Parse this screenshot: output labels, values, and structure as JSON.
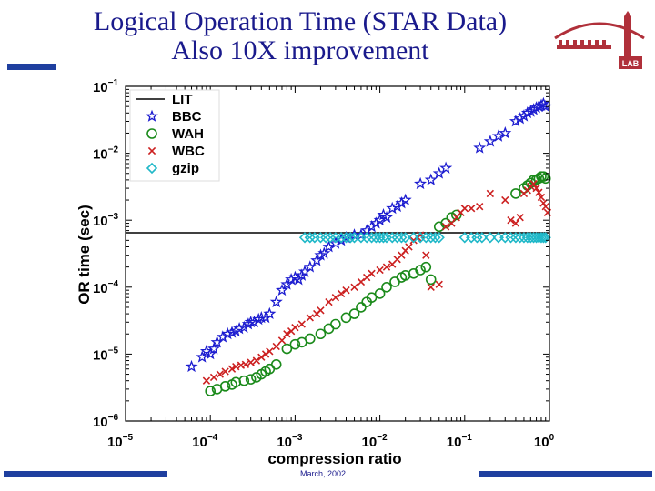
{
  "slide": {
    "title_line1": "Logical Operation Time (STAR Data)",
    "title_line2": "Also 10X improvement",
    "footer_date": "March, 2002",
    "logo_text": "LAB",
    "colors": {
      "title": "#1a1a8c",
      "bars": "#1f3f9f",
      "logo": "#b0303a"
    }
  },
  "chart_data": {
    "type": "scatter",
    "title": "",
    "xlabel": "compression ratio",
    "ylabel": "OR time (sec)",
    "xscale": "log",
    "yscale": "log",
    "xlim": [
      1e-05,
      1
    ],
    "ylim": [
      1e-06,
      0.1
    ],
    "xticks": [
      {
        "base": "10",
        "exp": "−5"
      },
      {
        "base": "10",
        "exp": "−4"
      },
      {
        "base": "10",
        "exp": "−3"
      },
      {
        "base": "10",
        "exp": "−2"
      },
      {
        "base": "10",
        "exp": "−1"
      },
      {
        "base": "10",
        "exp": "0"
      }
    ],
    "yticks": [
      {
        "base": "10",
        "exp": "−6"
      },
      {
        "base": "10",
        "exp": "−5"
      },
      {
        "base": "10",
        "exp": "−4"
      },
      {
        "base": "10",
        "exp": "−3"
      },
      {
        "base": "10",
        "exp": "−2"
      },
      {
        "base": "10",
        "exp": "−1"
      }
    ],
    "grid": false,
    "legend_position": "top-left",
    "series": [
      {
        "name": "LIT",
        "marker": "line",
        "color": "#000000",
        "y": 0.00065
      },
      {
        "name": "BBC",
        "marker": "star",
        "color": "#1c1cd0",
        "points": [
          [
            6e-05,
            6.5e-06
          ],
          [
            8e-05,
            9e-06
          ],
          [
            9e-05,
            1.1e-05
          ],
          [
            0.0001,
            1e-05
          ],
          [
            0.00011,
            1.2e-05
          ],
          [
            0.00012,
            1.5e-05
          ],
          [
            0.00014,
            1.8e-05
          ],
          [
            0.00016,
            2e-05
          ],
          [
            0.00018,
            2.1e-05
          ],
          [
            0.0002,
            2.2e-05
          ],
          [
            0.00022,
            2.4e-05
          ],
          [
            0.00025,
            2.5e-05
          ],
          [
            0.00028,
            2.8e-05
          ],
          [
            0.0003,
            3e-05
          ],
          [
            0.00033,
            3e-05
          ],
          [
            0.00037,
            3.3e-05
          ],
          [
            0.0004,
            3.5e-05
          ],
          [
            0.00045,
            3.5e-05
          ],
          [
            0.0005,
            4e-05
          ],
          [
            0.0006,
            6e-05
          ],
          [
            0.0007,
            9e-05
          ],
          [
            0.0008,
            0.00011
          ],
          [
            0.0009,
            0.00013
          ],
          [
            0.001,
            0.00014
          ],
          [
            0.0011,
            0.00013
          ],
          [
            0.0012,
            0.00015
          ],
          [
            0.0013,
            0.00017
          ],
          [
            0.0015,
            0.0002
          ],
          [
            0.0018,
            0.00025
          ],
          [
            0.002,
            0.0003
          ],
          [
            0.0022,
            0.00032
          ],
          [
            0.0025,
            0.0004
          ],
          [
            0.003,
            0.00045
          ],
          [
            0.0035,
            0.0005
          ],
          [
            0.004,
            0.00055
          ],
          [
            0.005,
            0.0006
          ],
          [
            0.006,
            0.0006
          ],
          [
            0.007,
            0.0007
          ],
          [
            0.008,
            0.0008
          ],
          [
            0.009,
            0.0009
          ],
          [
            0.01,
            0.001
          ],
          [
            0.011,
            0.0012
          ],
          [
            0.012,
            0.0011
          ],
          [
            0.014,
            0.0015
          ],
          [
            0.016,
            0.0016
          ],
          [
            0.018,
            0.0018
          ],
          [
            0.02,
            0.002
          ],
          [
            0.03,
            0.0035
          ],
          [
            0.04,
            0.004
          ],
          [
            0.05,
            0.005
          ],
          [
            0.06,
            0.006
          ],
          [
            0.15,
            0.012
          ],
          [
            0.2,
            0.015
          ],
          [
            0.25,
            0.018
          ],
          [
            0.3,
            0.02
          ],
          [
            0.4,
            0.03
          ],
          [
            0.45,
            0.033
          ],
          [
            0.5,
            0.036
          ],
          [
            0.55,
            0.04
          ],
          [
            0.6,
            0.042
          ],
          [
            0.65,
            0.045
          ],
          [
            0.7,
            0.048
          ],
          [
            0.75,
            0.05
          ],
          [
            0.8,
            0.052
          ],
          [
            0.85,
            0.055
          ],
          [
            0.9,
            0.05
          ]
        ]
      },
      {
        "name": "WAH",
        "marker": "circle",
        "color": "#1a8a1a",
        "points": [
          [
            0.0001,
            2.8e-06
          ],
          [
            0.00012,
            3e-06
          ],
          [
            0.00015,
            3.3e-06
          ],
          [
            0.00018,
            3.5e-06
          ],
          [
            0.0002,
            3.8e-06
          ],
          [
            0.00025,
            4e-06
          ],
          [
            0.0003,
            4.2e-06
          ],
          [
            0.00035,
            4.5e-06
          ],
          [
            0.0004,
            5e-06
          ],
          [
            0.00045,
            5.5e-06
          ],
          [
            0.0005,
            6e-06
          ],
          [
            0.0006,
            7e-06
          ],
          [
            0.0008,
            1.2e-05
          ],
          [
            0.001,
            1.4e-05
          ],
          [
            0.0012,
            1.5e-05
          ],
          [
            0.0015,
            1.7e-05
          ],
          [
            0.002,
            2e-05
          ],
          [
            0.0025,
            2.4e-05
          ],
          [
            0.003,
            2.8e-05
          ],
          [
            0.004,
            3.5e-05
          ],
          [
            0.005,
            4e-05
          ],
          [
            0.006,
            5e-05
          ],
          [
            0.007,
            6e-05
          ],
          [
            0.008,
            7e-05
          ],
          [
            0.01,
            8e-05
          ],
          [
            0.012,
            0.0001
          ],
          [
            0.015,
            0.00012
          ],
          [
            0.018,
            0.00014
          ],
          [
            0.02,
            0.00015
          ],
          [
            0.025,
            0.00016
          ],
          [
            0.03,
            0.00018
          ],
          [
            0.035,
            0.0002
          ],
          [
            0.04,
            0.00013
          ],
          [
            0.05,
            0.0008
          ],
          [
            0.06,
            0.0009
          ],
          [
            0.07,
            0.0011
          ],
          [
            0.08,
            0.0012
          ],
          [
            0.4,
            0.0025
          ],
          [
            0.5,
            0.003
          ],
          [
            0.55,
            0.0033
          ],
          [
            0.6,
            0.0036
          ],
          [
            0.65,
            0.004
          ],
          [
            0.7,
            0.004
          ],
          [
            0.75,
            0.0042
          ],
          [
            0.8,
            0.0045
          ],
          [
            0.85,
            0.0045
          ],
          [
            0.9,
            0.0042
          ]
        ]
      },
      {
        "name": "WBC",
        "marker": "x",
        "color": "#cc2020",
        "points": [
          [
            9e-05,
            4e-06
          ],
          [
            0.00011,
            4.5e-06
          ],
          [
            0.00013,
            5e-06
          ],
          [
            0.00015,
            5.5e-06
          ],
          [
            0.00018,
            6e-06
          ],
          [
            0.0002,
            6.5e-06
          ],
          [
            0.00023,
            6.8e-06
          ],
          [
            0.00026,
            7e-06
          ],
          [
            0.0003,
            7.5e-06
          ],
          [
            0.00035,
            8e-06
          ],
          [
            0.0004,
            9e-06
          ],
          [
            0.00045,
            1e-05
          ],
          [
            0.0005,
            1.1e-05
          ],
          [
            0.0006,
            1.3e-05
          ],
          [
            0.0007,
            1.6e-05
          ],
          [
            0.0008,
            2e-05
          ],
          [
            0.0009,
            2.2e-05
          ],
          [
            0.001,
            2.5e-05
          ],
          [
            0.0012,
            2.8e-05
          ],
          [
            0.0015,
            3.5e-05
          ],
          [
            0.0018,
            4e-05
          ],
          [
            0.002,
            4.5e-05
          ],
          [
            0.0025,
            6e-05
          ],
          [
            0.003,
            7e-05
          ],
          [
            0.0035,
            8e-05
          ],
          [
            0.004,
            9e-05
          ],
          [
            0.005,
            0.0001
          ],
          [
            0.006,
            0.00012
          ],
          [
            0.007,
            0.00014
          ],
          [
            0.008,
            0.00016
          ],
          [
            0.01,
            0.00018
          ],
          [
            0.012,
            0.0002
          ],
          [
            0.014,
            0.00022
          ],
          [
            0.016,
            0.00026
          ],
          [
            0.018,
            0.0003
          ],
          [
            0.02,
            0.00035
          ],
          [
            0.022,
            0.0004
          ],
          [
            0.025,
            0.0005
          ],
          [
            0.028,
            0.00055
          ],
          [
            0.03,
            0.0006
          ],
          [
            0.035,
            0.0003
          ],
          [
            0.04,
            0.0001
          ],
          [
            0.05,
            0.00011
          ],
          [
            0.06,
            0.0008
          ],
          [
            0.07,
            0.0009
          ],
          [
            0.08,
            0.0011
          ],
          [
            0.09,
            0.0013
          ],
          [
            0.1,
            0.0015
          ],
          [
            0.12,
            0.0015
          ],
          [
            0.15,
            0.0016
          ],
          [
            0.2,
            0.0025
          ],
          [
            0.3,
            0.002
          ],
          [
            0.35,
            0.001
          ],
          [
            0.4,
            0.0009
          ],
          [
            0.45,
            0.0011
          ],
          [
            0.5,
            0.0025
          ],
          [
            0.55,
            0.0028
          ],
          [
            0.6,
            0.0032
          ],
          [
            0.65,
            0.0035
          ],
          [
            0.7,
            0.003
          ],
          [
            0.75,
            0.0026
          ],
          [
            0.8,
            0.0022
          ],
          [
            0.85,
            0.0018
          ],
          [
            0.9,
            0.0016
          ],
          [
            0.95,
            0.0013
          ]
        ]
      },
      {
        "name": "gzip",
        "marker": "diamond",
        "color": "#20b8c8",
        "points": [
          [
            0.0013,
            0.00055
          ],
          [
            0.0015,
            0.00055
          ],
          [
            0.0017,
            0.00055
          ],
          [
            0.002,
            0.00055
          ],
          [
            0.0023,
            0.00055
          ],
          [
            0.0026,
            0.00055
          ],
          [
            0.003,
            0.00055
          ],
          [
            0.0035,
            0.00055
          ],
          [
            0.004,
            0.00055
          ],
          [
            0.0045,
            0.00055
          ],
          [
            0.005,
            0.00055
          ],
          [
            0.006,
            0.00055
          ],
          [
            0.007,
            0.00055
          ],
          [
            0.008,
            0.00055
          ],
          [
            0.009,
            0.00055
          ],
          [
            0.01,
            0.00055
          ],
          [
            0.011,
            0.00055
          ],
          [
            0.012,
            0.00055
          ],
          [
            0.014,
            0.00055
          ],
          [
            0.016,
            0.00055
          ],
          [
            0.018,
            0.00055
          ],
          [
            0.02,
            0.00055
          ],
          [
            0.025,
            0.00055
          ],
          [
            0.03,
            0.00055
          ],
          [
            0.035,
            0.00055
          ],
          [
            0.04,
            0.00055
          ],
          [
            0.045,
            0.00055
          ],
          [
            0.05,
            0.00055
          ],
          [
            0.1,
            0.00055
          ],
          [
            0.12,
            0.00055
          ],
          [
            0.14,
            0.00055
          ],
          [
            0.16,
            0.00055
          ],
          [
            0.2,
            0.00055
          ],
          [
            0.25,
            0.00055
          ],
          [
            0.3,
            0.00055
          ],
          [
            0.35,
            0.00055
          ],
          [
            0.4,
            0.00055
          ],
          [
            0.45,
            0.00055
          ],
          [
            0.5,
            0.00055
          ],
          [
            0.55,
            0.00055
          ],
          [
            0.6,
            0.00055
          ],
          [
            0.65,
            0.00055
          ],
          [
            0.7,
            0.00055
          ],
          [
            0.75,
            0.00055
          ],
          [
            0.8,
            0.00055
          ],
          [
            0.85,
            0.00055
          ],
          [
            0.9,
            0.00055
          ]
        ]
      }
    ]
  }
}
